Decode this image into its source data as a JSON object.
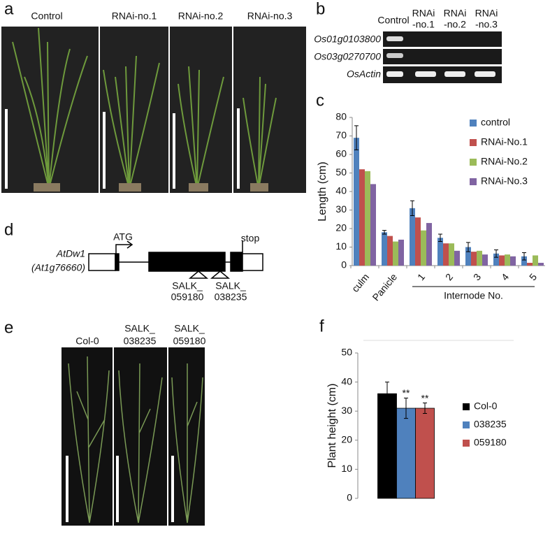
{
  "figure": {
    "panel_labels": [
      "a",
      "b",
      "c",
      "d",
      "e",
      "f"
    ],
    "a": {
      "labels": [
        "Control",
        "RNAi-no.1",
        "RNAi-no.2",
        "RNAi-no.3"
      ]
    },
    "b": {
      "control": "Control",
      "lanes": [
        [
          "RNAi",
          "-no.1"
        ],
        [
          "RNAi",
          "-no.2"
        ],
        [
          "RNAi",
          "-no.3"
        ]
      ],
      "rows": [
        "Os01g0103800",
        "Os03g0270700",
        "OsActin"
      ]
    },
    "d": {
      "gene": "AtDw1",
      "locus": "(At1g76660)",
      "start": "ATG",
      "stop": "stop",
      "insertions": [
        [
          "SALK_",
          "059180"
        ],
        [
          "SALK_",
          "038235"
        ]
      ]
    },
    "e": {
      "labels": [
        [
          "Col-0"
        ],
        [
          "SALK_",
          "038235"
        ],
        [
          "SALK_",
          "059180"
        ]
      ]
    }
  },
  "chart_data": [
    {
      "type": "bar",
      "ylabel": "Length (cm)",
      "xlabel": "Internode No.",
      "categories": [
        "culm",
        "Panicle",
        "1",
        "2",
        "3",
        "4",
        "5"
      ],
      "series": [
        {
          "name": "control",
          "color": "#4f81bd",
          "values": [
            69,
            18,
            31,
            15,
            10,
            6.5,
            5
          ],
          "errors": [
            6.5,
            1,
            4,
            2,
            2.5,
            2,
            2
          ]
        },
        {
          "name": "RNAi-No.1",
          "color": "#c0504d",
          "values": [
            52,
            16,
            26,
            12,
            7.5,
            5.5,
            1.5
          ]
        },
        {
          "name": "RNAi-No.2",
          "color": "#9bbb59",
          "values": [
            51,
            13,
            19,
            12,
            8,
            6,
            5.5
          ]
        },
        {
          "name": "RNAi-No.3",
          "color": "#8064a2",
          "values": [
            44,
            14,
            23,
            8,
            6,
            5,
            1.5
          ]
        }
      ],
      "ylim": [
        0,
        80
      ],
      "yticks": [
        0,
        10,
        20,
        30,
        40,
        50,
        60,
        70,
        80
      ]
    },
    {
      "type": "bar",
      "ylabel": "Plant height (cm)",
      "categories": [
        null
      ],
      "series": [
        {
          "name": "Col-0",
          "color": "#000000",
          "values": [
            36
          ],
          "errors": [
            4
          ]
        },
        {
          "name": "038235",
          "color": "#4f81bd",
          "values": [
            31
          ],
          "errors": [
            3.5
          ],
          "annotation": "**"
        },
        {
          "name": "059180",
          "color": "#c0504d",
          "values": [
            31
          ],
          "errors": [
            1.8
          ],
          "annotation": "**"
        }
      ],
      "ylim": [
        0,
        50
      ],
      "yticks": [
        0,
        10,
        20,
        30,
        40,
        50
      ]
    }
  ]
}
